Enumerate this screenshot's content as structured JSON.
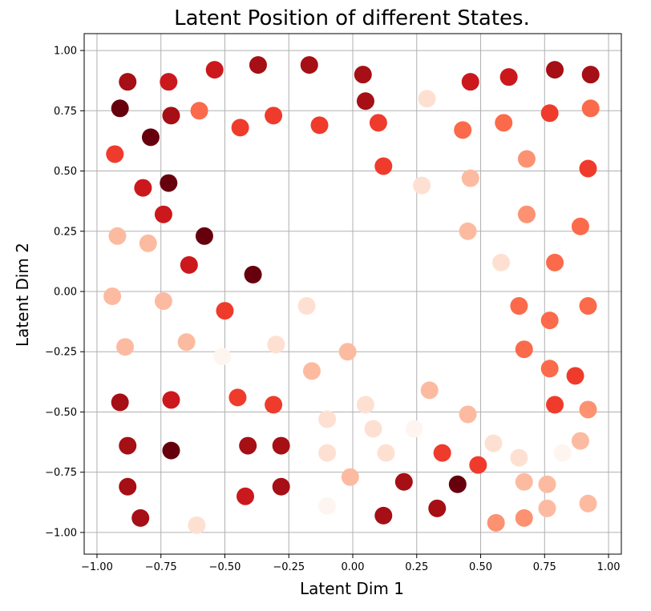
{
  "chart_data": {
    "type": "scatter",
    "title": "Latent Position of different States.",
    "xlabel": "Latent Dim 1",
    "ylabel": "Latent Dim 2",
    "xlim": [
      -1.05,
      1.05
    ],
    "ylim": [
      -1.09,
      1.07
    ],
    "grid": true,
    "colormap": "Reds",
    "xticks": [
      -1.0,
      -0.75,
      -0.5,
      -0.25,
      0.0,
      0.25,
      0.5,
      0.75,
      1.0
    ],
    "xtick_labels": [
      "−1.00",
      "−0.75",
      "−0.50",
      "−0.25",
      "0.00",
      "0.25",
      "0.50",
      "0.75",
      "1.00"
    ],
    "yticks": [
      1.0,
      0.75,
      0.5,
      0.25,
      0.0,
      -0.25,
      -0.5,
      -0.75,
      -1.0
    ],
    "ytick_labels": [
      "1.00",
      "0.75",
      "0.50",
      "0.25",
      "0.00",
      "−0.25",
      "−0.50",
      "−0.75",
      "−1.00"
    ],
    "points": [
      {
        "x": -0.88,
        "y": 0.87,
        "color": "#a50f15"
      },
      {
        "x": -0.72,
        "y": 0.87,
        "color": "#cb181d"
      },
      {
        "x": -0.54,
        "y": 0.92,
        "color": "#cb181d"
      },
      {
        "x": -0.37,
        "y": 0.94,
        "color": "#a50f15"
      },
      {
        "x": -0.17,
        "y": 0.94,
        "color": "#a50f15"
      },
      {
        "x": 0.04,
        "y": 0.9,
        "color": "#a50f15"
      },
      {
        "x": 0.46,
        "y": 0.87,
        "color": "#cb181d"
      },
      {
        "x": 0.61,
        "y": 0.89,
        "color": "#cb181d"
      },
      {
        "x": 0.79,
        "y": 0.92,
        "color": "#a50f15"
      },
      {
        "x": 0.93,
        "y": 0.9,
        "color": "#a50f15"
      },
      {
        "x": -0.91,
        "y": 0.76,
        "color": "#67000d"
      },
      {
        "x": -0.71,
        "y": 0.73,
        "color": "#a50f15"
      },
      {
        "x": -0.6,
        "y": 0.75,
        "color": "#fb6a4a"
      },
      {
        "x": -0.44,
        "y": 0.68,
        "color": "#ef3b2c"
      },
      {
        "x": -0.31,
        "y": 0.73,
        "color": "#ef3b2c"
      },
      {
        "x": -0.13,
        "y": 0.69,
        "color": "#ef3b2c"
      },
      {
        "x": 0.05,
        "y": 0.79,
        "color": "#a50f15"
      },
      {
        "x": 0.1,
        "y": 0.7,
        "color": "#ef3b2c"
      },
      {
        "x": 0.29,
        "y": 0.8,
        "color": "#fee0d2"
      },
      {
        "x": 0.43,
        "y": 0.67,
        "color": "#fb6a4a"
      },
      {
        "x": 0.59,
        "y": 0.7,
        "color": "#fb6a4a"
      },
      {
        "x": 0.77,
        "y": 0.74,
        "color": "#ef3b2c"
      },
      {
        "x": 0.93,
        "y": 0.76,
        "color": "#fb6a4a"
      },
      {
        "x": -0.93,
        "y": 0.57,
        "color": "#ef3b2c"
      },
      {
        "x": -0.79,
        "y": 0.64,
        "color": "#67000d"
      },
      {
        "x": -0.82,
        "y": 0.43,
        "color": "#cb181d"
      },
      {
        "x": -0.72,
        "y": 0.45,
        "color": "#67000d"
      },
      {
        "x": 0.12,
        "y": 0.52,
        "color": "#ef3b2c"
      },
      {
        "x": 0.27,
        "y": 0.44,
        "color": "#fee0d2"
      },
      {
        "x": 0.46,
        "y": 0.47,
        "color": "#fcbba1"
      },
      {
        "x": 0.68,
        "y": 0.55,
        "color": "#fc9272"
      },
      {
        "x": 0.92,
        "y": 0.51,
        "color": "#ef3b2c"
      },
      {
        "x": -0.74,
        "y": 0.32,
        "color": "#cb181d"
      },
      {
        "x": -0.92,
        "y": 0.23,
        "color": "#fcbba1"
      },
      {
        "x": -0.8,
        "y": 0.2,
        "color": "#fcbba1"
      },
      {
        "x": -0.58,
        "y": 0.23,
        "color": "#67000d"
      },
      {
        "x": -0.64,
        "y": 0.11,
        "color": "#cb181d"
      },
      {
        "x": -0.39,
        "y": 0.07,
        "color": "#67000d"
      },
      {
        "x": 0.45,
        "y": 0.25,
        "color": "#fcbba1"
      },
      {
        "x": 0.58,
        "y": 0.12,
        "color": "#fee0d2"
      },
      {
        "x": 0.68,
        "y": 0.32,
        "color": "#fc9272"
      },
      {
        "x": 0.79,
        "y": 0.12,
        "color": "#fb6a4a"
      },
      {
        "x": 0.89,
        "y": 0.27,
        "color": "#fb6a4a"
      },
      {
        "x": -0.94,
        "y": -0.02,
        "color": "#fcbba1"
      },
      {
        "x": -0.74,
        "y": -0.04,
        "color": "#fcbba1"
      },
      {
        "x": -0.5,
        "y": -0.08,
        "color": "#ef3b2c"
      },
      {
        "x": -0.18,
        "y": -0.06,
        "color": "#fee0d2"
      },
      {
        "x": 0.65,
        "y": -0.06,
        "color": "#fb6a4a"
      },
      {
        "x": 0.77,
        "y": -0.12,
        "color": "#fb6a4a"
      },
      {
        "x": 0.92,
        "y": -0.06,
        "color": "#fb6a4a"
      },
      {
        "x": -0.89,
        "y": -0.23,
        "color": "#fcbba1"
      },
      {
        "x": -0.65,
        "y": -0.21,
        "color": "#fcbba1"
      },
      {
        "x": -0.51,
        "y": -0.27,
        "color": "#fff5f0"
      },
      {
        "x": -0.3,
        "y": -0.22,
        "color": "#fee0d2"
      },
      {
        "x": -0.16,
        "y": -0.33,
        "color": "#fcbba1"
      },
      {
        "x": -0.02,
        "y": -0.25,
        "color": "#fcbba1"
      },
      {
        "x": 0.67,
        "y": -0.24,
        "color": "#fb6a4a"
      },
      {
        "x": 0.77,
        "y": -0.32,
        "color": "#fb6a4a"
      },
      {
        "x": 0.87,
        "y": -0.35,
        "color": "#ef3b2c"
      },
      {
        "x": -0.91,
        "y": -0.46,
        "color": "#a50f15"
      },
      {
        "x": -0.71,
        "y": -0.45,
        "color": "#cb181d"
      },
      {
        "x": -0.45,
        "y": -0.44,
        "color": "#ef3b2c"
      },
      {
        "x": -0.31,
        "y": -0.47,
        "color": "#ef3b2c"
      },
      {
        "x": -0.1,
        "y": -0.53,
        "color": "#fee0d2"
      },
      {
        "x": 0.05,
        "y": -0.47,
        "color": "#fee0d2"
      },
      {
        "x": 0.08,
        "y": -0.57,
        "color": "#fee0d2"
      },
      {
        "x": 0.24,
        "y": -0.57,
        "color": "#fff5f0"
      },
      {
        "x": 0.3,
        "y": -0.41,
        "color": "#fcbba1"
      },
      {
        "x": 0.45,
        "y": -0.51,
        "color": "#fcbba1"
      },
      {
        "x": 0.79,
        "y": -0.47,
        "color": "#ef3b2c"
      },
      {
        "x": 0.92,
        "y": -0.49,
        "color": "#fc9272"
      },
      {
        "x": -0.88,
        "y": -0.64,
        "color": "#a50f15"
      },
      {
        "x": -0.71,
        "y": -0.66,
        "color": "#67000d"
      },
      {
        "x": -0.41,
        "y": -0.64,
        "color": "#a50f15"
      },
      {
        "x": -0.28,
        "y": -0.64,
        "color": "#a50f15"
      },
      {
        "x": -0.1,
        "y": -0.67,
        "color": "#fee0d2"
      },
      {
        "x": 0.13,
        "y": -0.67,
        "color": "#fee0d2"
      },
      {
        "x": 0.35,
        "y": -0.67,
        "color": "#ef3b2c"
      },
      {
        "x": 0.49,
        "y": -0.72,
        "color": "#ef3b2c"
      },
      {
        "x": 0.55,
        "y": -0.63,
        "color": "#fee0d2"
      },
      {
        "x": 0.65,
        "y": -0.69,
        "color": "#fee0d2"
      },
      {
        "x": 0.82,
        "y": -0.67,
        "color": "#fff5f0"
      },
      {
        "x": 0.89,
        "y": -0.62,
        "color": "#fcbba1"
      },
      {
        "x": -0.88,
        "y": -0.81,
        "color": "#a50f15"
      },
      {
        "x": -0.83,
        "y": -0.94,
        "color": "#a50f15"
      },
      {
        "x": -0.61,
        "y": -0.97,
        "color": "#fee0d2"
      },
      {
        "x": -0.42,
        "y": -0.85,
        "color": "#cb181d"
      },
      {
        "x": -0.28,
        "y": -0.81,
        "color": "#a50f15"
      },
      {
        "x": -0.1,
        "y": -0.89,
        "color": "#fff5f0"
      },
      {
        "x": -0.01,
        "y": -0.77,
        "color": "#fcbba1"
      },
      {
        "x": 0.12,
        "y": -0.93,
        "color": "#a50f15"
      },
      {
        "x": 0.2,
        "y": -0.79,
        "color": "#a50f15"
      },
      {
        "x": 0.33,
        "y": -0.9,
        "color": "#a50f15"
      },
      {
        "x": 0.41,
        "y": -0.8,
        "color": "#67000d"
      },
      {
        "x": 0.56,
        "y": -0.96,
        "color": "#fc9272"
      },
      {
        "x": 0.67,
        "y": -0.94,
        "color": "#fc9272"
      },
      {
        "x": 0.67,
        "y": -0.79,
        "color": "#fcbba1"
      },
      {
        "x": 0.76,
        "y": -0.8,
        "color": "#fcbba1"
      },
      {
        "x": 0.76,
        "y": -0.9,
        "color": "#fcbba1"
      },
      {
        "x": 0.92,
        "y": -0.88,
        "color": "#fcbba1"
      }
    ]
  }
}
